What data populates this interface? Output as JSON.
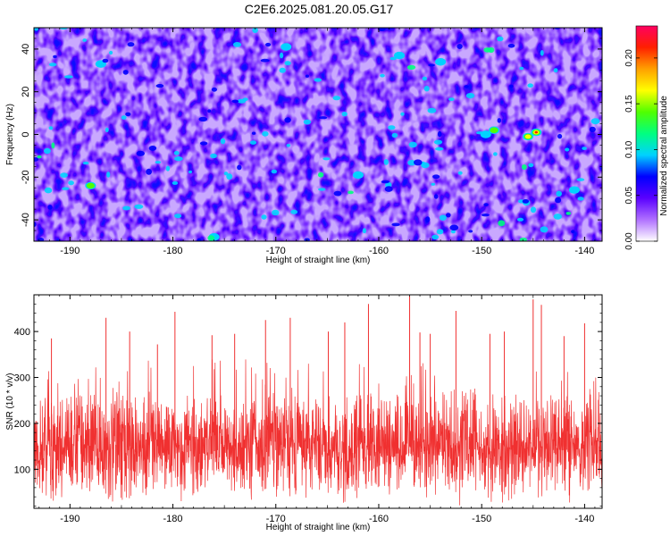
{
  "title": "C2E6.2025.081.20.05.G17",
  "chart_data": [
    {
      "type": "heatmap",
      "title": "",
      "xlabel": "Height of straight line (km)",
      "ylabel": "Frequency (Hz)",
      "xlim": [
        -193.5,
        -138.3
      ],
      "ylim": [
        -50,
        50
      ],
      "xticks": [
        -190,
        -180,
        -170,
        -160,
        -150,
        -140
      ],
      "yticks": [
        -40,
        -20,
        0,
        20,
        40
      ],
      "colorbar": {
        "label": "Normalized spectral amplitude",
        "range": [
          0,
          0.235
        ],
        "ticks": [
          0.0,
          0.05,
          0.1,
          0.15,
          0.2
        ],
        "tick_labels": [
          "0.00",
          "0.05",
          "0.10",
          "0.15",
          "0.20"
        ],
        "colormap": [
          "#ffffff",
          "#b070ff",
          "#5a00ff",
          "#0000ff",
          "#00d2ff",
          "#00ff80",
          "#50ff00",
          "#ffff00",
          "#ffa000",
          "#ff2000",
          "#ff0060"
        ]
      },
      "hotspots": [
        {
          "x": -144.7,
          "y": 1,
          "value": 0.23
        },
        {
          "x": -145.5,
          "y": -1,
          "value": 0.17
        },
        {
          "x": -148.8,
          "y": 2,
          "value": 0.13
        },
        {
          "x": -149.6,
          "y": 0,
          "value": 0.12
        },
        {
          "x": -188.0,
          "y": -24,
          "value": 0.13
        },
        {
          "x": -162.0,
          "y": -19,
          "value": 0.11
        },
        {
          "x": -187.0,
          "y": 33,
          "value": 0.1
        },
        {
          "x": -176.0,
          "y": -48,
          "value": 0.11
        },
        {
          "x": -169.0,
          "y": 41,
          "value": 0.09
        },
        {
          "x": -154.0,
          "y": 34,
          "value": 0.09
        },
        {
          "x": -141.0,
          "y": -26,
          "value": 0.1
        },
        {
          "x": -158.0,
          "y": 37,
          "value": 0.09
        }
      ],
      "background_level": 0.05
    },
    {
      "type": "line",
      "title": "",
      "xlabel": "Height of straight line (km)",
      "ylabel": "SNR (10 * v/v)",
      "xlim": [
        -193.5,
        -138.3
      ],
      "ylim": [
        15,
        480
      ],
      "xticks": [
        -190,
        -180,
        -170,
        -160,
        -150,
        -140
      ],
      "yticks": [
        100,
        200,
        300,
        400
      ],
      "series": [
        {
          "color": "#f03030",
          "samples": 2400,
          "baseline_mean": 150,
          "typical_max": 340,
          "min": 18,
          "peaks": [
            {
              "x": -157.0,
              "y": 478
            },
            {
              "x": -145.0,
              "y": 470
            },
            {
              "x": -161.0,
              "y": 460
            },
            {
              "x": -144.2,
              "y": 458
            },
            {
              "x": -152.5,
              "y": 445
            },
            {
              "x": -179.8,
              "y": 443
            },
            {
              "x": -186.5,
              "y": 430
            },
            {
              "x": -171.0,
              "y": 425
            },
            {
              "x": -168.6,
              "y": 430
            },
            {
              "x": -163.3,
              "y": 420
            },
            {
              "x": -140.0,
              "y": 418
            },
            {
              "x": -184.2,
              "y": 400
            },
            {
              "x": -176.2,
              "y": 392
            },
            {
              "x": -174.0,
              "y": 395
            },
            {
              "x": -191.8,
              "y": 385
            },
            {
              "x": -147.8,
              "y": 400
            },
            {
              "x": -156.0,
              "y": 398
            },
            {
              "x": -149.2,
              "y": 395
            },
            {
              "x": -155.0,
              "y": 395
            },
            {
              "x": -164.9,
              "y": 400
            },
            {
              "x": -181.5,
              "y": 372
            },
            {
              "x": -142.0,
              "y": 390
            }
          ]
        }
      ]
    }
  ]
}
